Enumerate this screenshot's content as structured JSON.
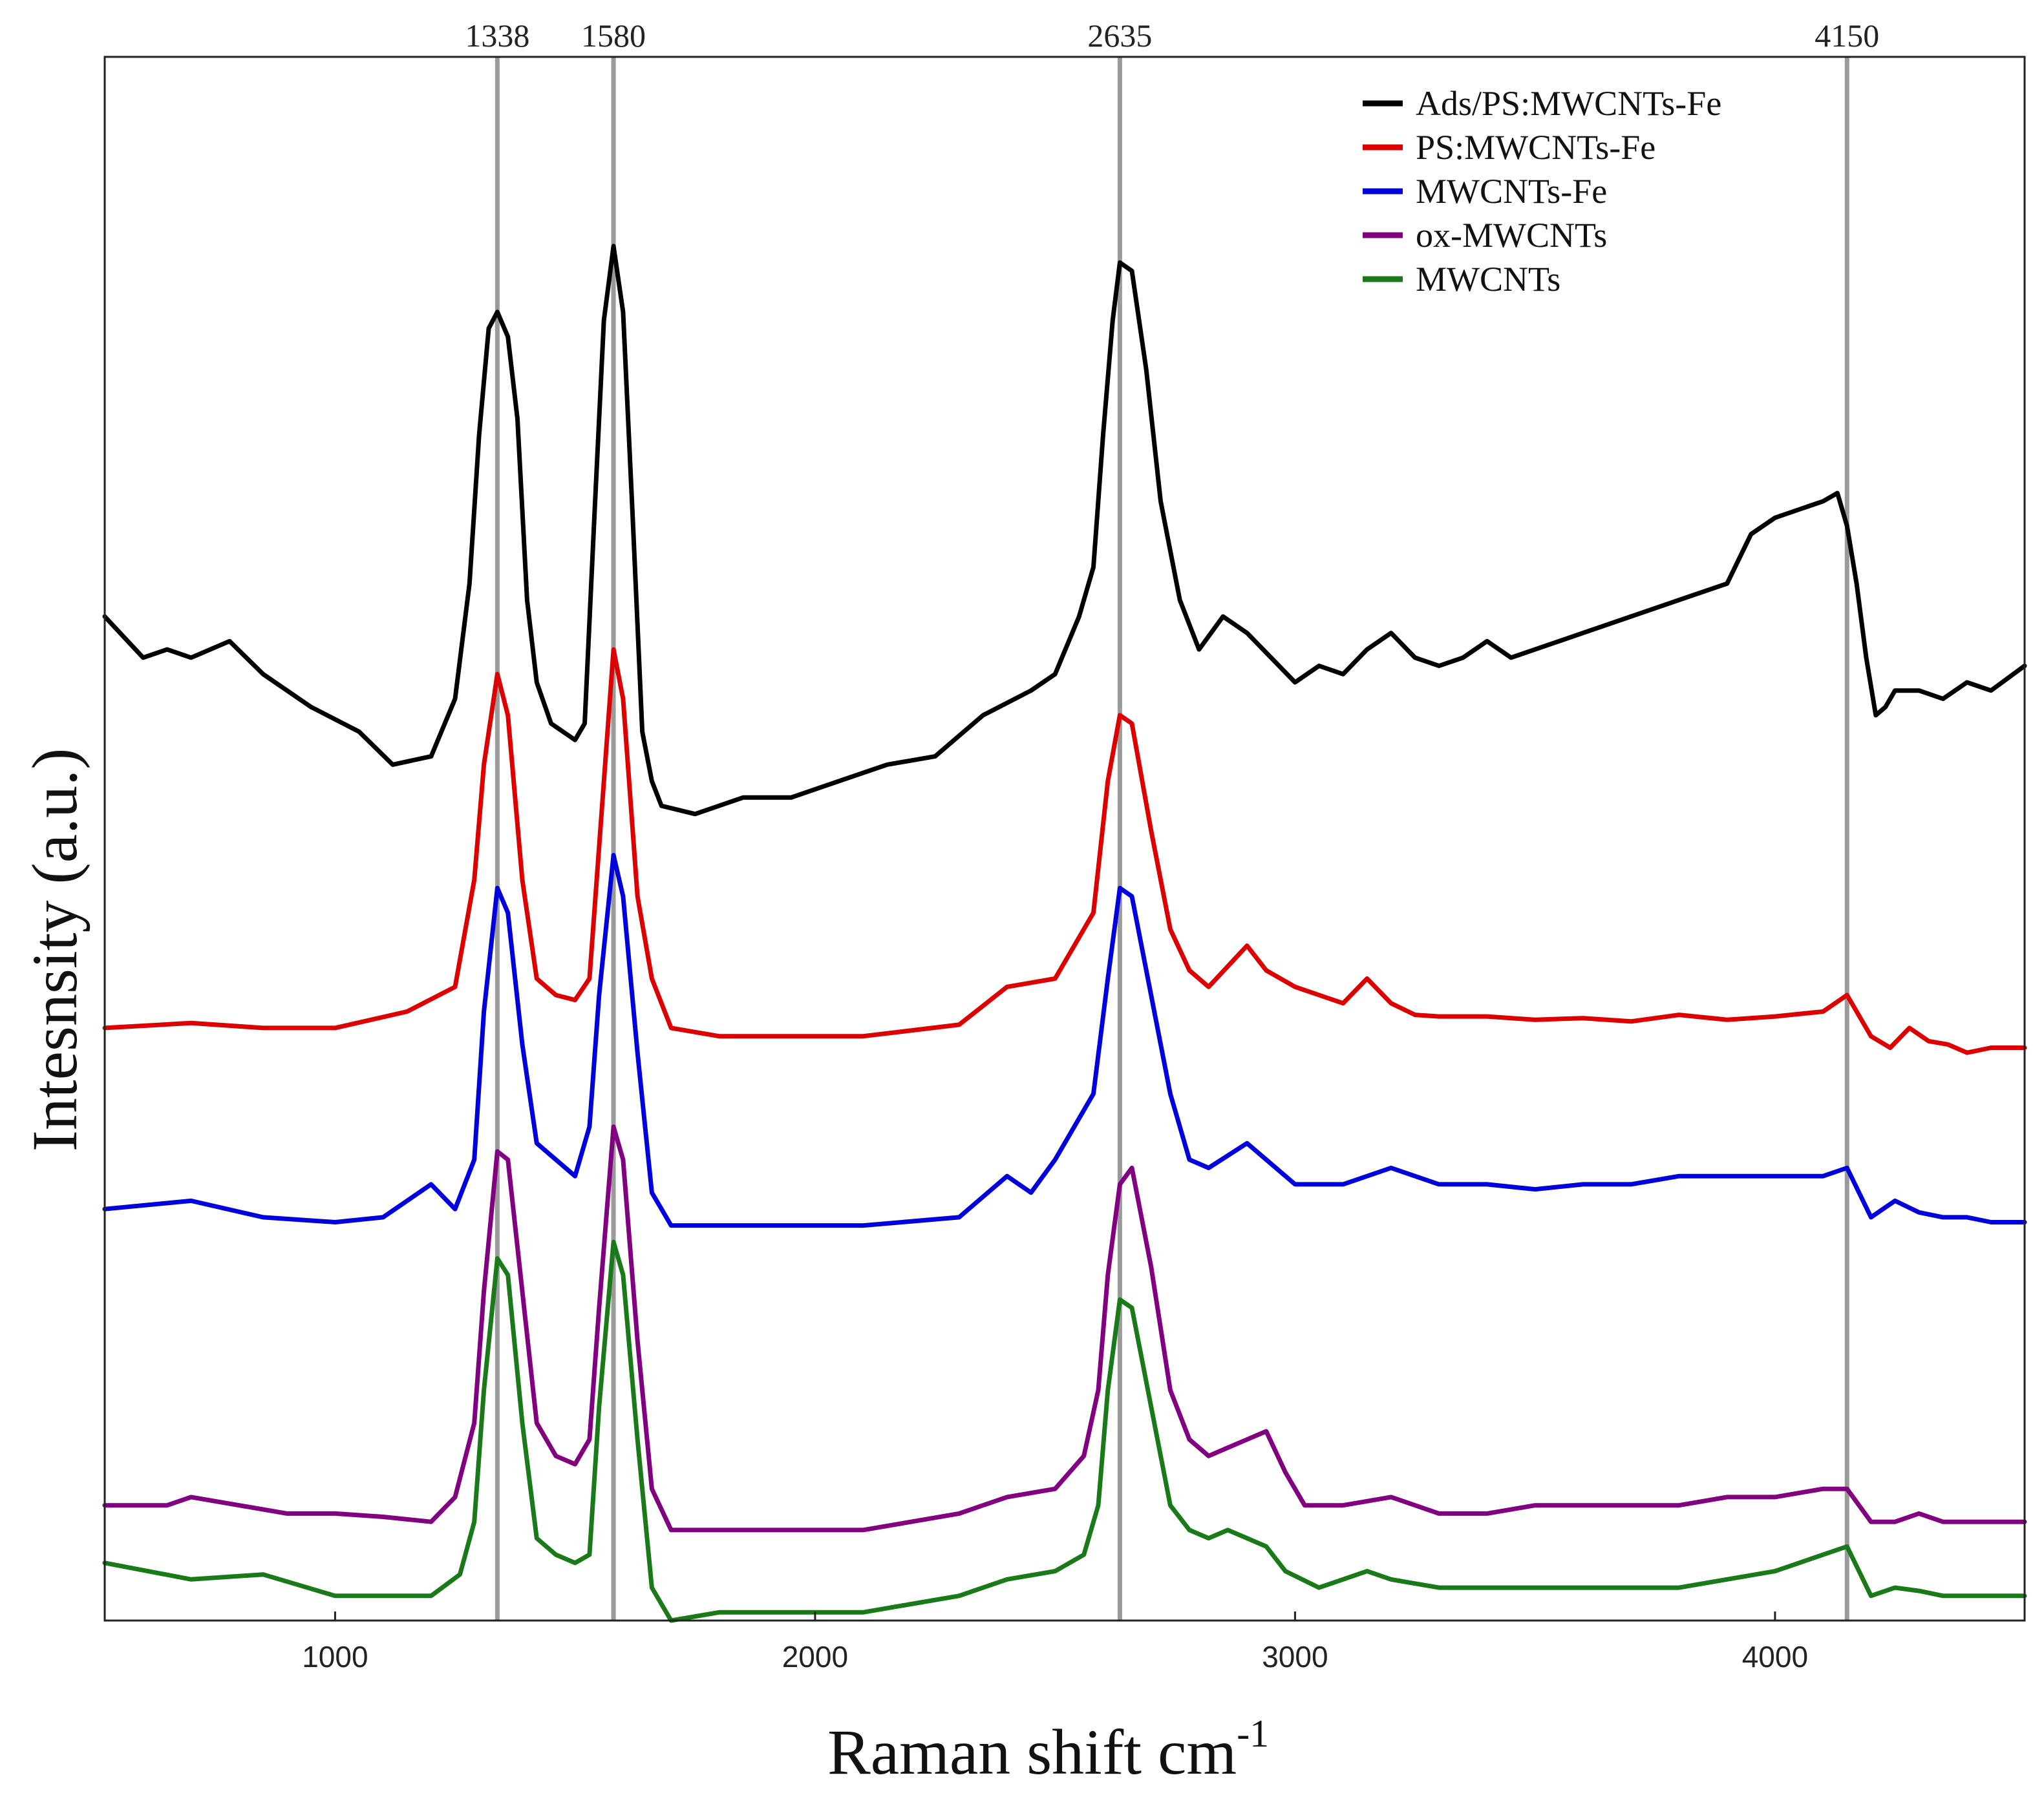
{
  "chart_data": {
    "type": "line",
    "title": "",
    "xlabel": "Raman shift cm",
    "xlabel_superscript": "-1",
    "ylabel": "Intesnsity (a.u.)",
    "xlim": [
      520,
      4520
    ],
    "ylim": [
      -2.9,
      6.6
    ],
    "x_ticks": [
      1000,
      2000,
      3000,
      4000
    ],
    "y_ticks_shown": false,
    "grid": false,
    "legend_position": "top-right",
    "reference_lines": [
      {
        "x": 1338,
        "label": "1338"
      },
      {
        "x": 1580,
        "label": "1580"
      },
      {
        "x": 2635,
        "label": "2635"
      },
      {
        "x": 4150,
        "label": "4150"
      }
    ],
    "series": [
      {
        "name": "Ads/PS:MWCNTs-Fe",
        "color": "#000000",
        "x": [
          520,
          600,
          650,
          700,
          780,
          850,
          950,
          1050,
          1120,
          1200,
          1250,
          1280,
          1300,
          1320,
          1338,
          1360,
          1380,
          1400,
          1420,
          1450,
          1500,
          1520,
          1540,
          1560,
          1580,
          1600,
          1620,
          1640,
          1660,
          1680,
          1750,
          1850,
          1950,
          2050,
          2150,
          2250,
          2350,
          2450,
          2500,
          2550,
          2580,
          2600,
          2620,
          2635,
          2660,
          2690,
          2720,
          2760,
          2800,
          2850,
          2900,
          2950,
          3000,
          3050,
          3100,
          3150,
          3200,
          3250,
          3300,
          3350,
          3400,
          3450,
          3500,
          3600,
          3700,
          3800,
          3900,
          3950,
          4000,
          4050,
          4100,
          4130,
          4150,
          4170,
          4190,
          4210,
          4230,
          4250,
          4300,
          4350,
          4400,
          4450,
          4520
        ],
        "y": [
          3.2,
          2.95,
          3.0,
          2.95,
          3.05,
          2.85,
          2.65,
          2.5,
          2.3,
          2.35,
          2.7,
          3.4,
          4.3,
          4.95,
          5.05,
          4.9,
          4.4,
          3.3,
          2.8,
          2.55,
          2.45,
          2.55,
          3.8,
          5.0,
          5.45,
          5.05,
          3.8,
          2.5,
          2.2,
          2.05,
          2.0,
          2.1,
          2.1,
          2.2,
          2.3,
          2.35,
          2.6,
          2.75,
          2.85,
          3.2,
          3.5,
          4.3,
          5.0,
          5.35,
          5.3,
          4.7,
          3.9,
          3.3,
          3.0,
          3.2,
          3.1,
          2.95,
          2.8,
          2.9,
          2.85,
          3.0,
          3.1,
          2.95,
          2.9,
          2.95,
          3.05,
          2.95,
          3.0,
          3.1,
          3.2,
          3.3,
          3.4,
          3.7,
          3.8,
          3.85,
          3.9,
          3.95,
          3.75,
          3.4,
          2.95,
          2.6,
          2.65,
          2.75,
          2.75,
          2.7,
          2.8,
          2.75,
          2.9
        ]
      },
      {
        "name": "PS:MWCNTs-Fe",
        "color": "#dd0000",
        "x": [
          520,
          700,
          850,
          1000,
          1150,
          1250,
          1290,
          1310,
          1338,
          1360,
          1390,
          1420,
          1460,
          1500,
          1530,
          1550,
          1580,
          1600,
          1630,
          1660,
          1700,
          1800,
          1900,
          2100,
          2300,
          2400,
          2500,
          2580,
          2610,
          2635,
          2660,
          2700,
          2740,
          2780,
          2820,
          2900,
          2940,
          3000,
          3050,
          3100,
          3150,
          3200,
          3250,
          3300,
          3400,
          3500,
          3600,
          3700,
          3800,
          3900,
          4000,
          4100,
          4150,
          4200,
          4240,
          4280,
          4320,
          4360,
          4400,
          4450,
          4520
        ],
        "y": [
          0.7,
          0.73,
          0.7,
          0.7,
          0.8,
          0.95,
          1.6,
          2.3,
          2.85,
          2.6,
          1.6,
          1.0,
          0.9,
          0.87,
          1.0,
          1.8,
          3.0,
          2.7,
          1.5,
          1.0,
          0.7,
          0.65,
          0.65,
          0.65,
          0.72,
          0.95,
          1.0,
          1.4,
          2.2,
          2.6,
          2.55,
          1.9,
          1.3,
          1.05,
          0.95,
          1.2,
          1.05,
          0.95,
          0.9,
          0.85,
          1.0,
          0.85,
          0.78,
          0.77,
          0.77,
          0.75,
          0.76,
          0.74,
          0.78,
          0.75,
          0.77,
          0.8,
          0.9,
          0.65,
          0.58,
          0.7,
          0.62,
          0.6,
          0.55,
          0.58,
          0.58
        ]
      },
      {
        "name": "MWCNTs-Fe",
        "color": "#0000dd",
        "x": [
          520,
          700,
          850,
          1000,
          1100,
          1200,
          1250,
          1290,
          1310,
          1338,
          1360,
          1390,
          1420,
          1460,
          1500,
          1530,
          1550,
          1580,
          1600,
          1630,
          1660,
          1700,
          1800,
          1900,
          2100,
          2300,
          2400,
          2450,
          2500,
          2580,
          2610,
          2635,
          2660,
          2700,
          2740,
          2780,
          2820,
          2900,
          2940,
          3000,
          3100,
          3200,
          3300,
          3400,
          3500,
          3600,
          3700,
          3800,
          3900,
          4000,
          4100,
          4150,
          4200,
          4250,
          4300,
          4350,
          4400,
          4450,
          4520
        ],
        "y": [
          -0.4,
          -0.35,
          -0.45,
          -0.48,
          -0.45,
          -0.25,
          -0.4,
          -0.1,
          0.8,
          1.55,
          1.4,
          0.6,
          0.0,
          -0.1,
          -0.2,
          0.1,
          0.9,
          1.75,
          1.5,
          0.55,
          -0.3,
          -0.5,
          -0.5,
          -0.5,
          -0.5,
          -0.45,
          -0.2,
          -0.3,
          -0.1,
          0.3,
          1.0,
          1.55,
          1.5,
          0.9,
          0.3,
          -0.1,
          -0.15,
          0.0,
          -0.1,
          -0.25,
          -0.25,
          -0.15,
          -0.25,
          -0.25,
          -0.28,
          -0.25,
          -0.25,
          -0.2,
          -0.2,
          -0.2,
          -0.2,
          -0.15,
          -0.45,
          -0.35,
          -0.42,
          -0.45,
          -0.45,
          -0.48,
          -0.48
        ]
      },
      {
        "name": "ox-MWCNTs",
        "color": "#800080",
        "x": [
          520,
          650,
          700,
          800,
          900,
          1000,
          1100,
          1200,
          1250,
          1290,
          1310,
          1338,
          1360,
          1390,
          1420,
          1460,
          1500,
          1530,
          1550,
          1580,
          1600,
          1630,
          1660,
          1700,
          1800,
          1900,
          2000,
          2100,
          2200,
          2300,
          2400,
          2500,
          2560,
          2590,
          2610,
          2635,
          2660,
          2700,
          2740,
          2780,
          2820,
          2860,
          2900,
          2940,
          2980,
          3020,
          3100,
          3200,
          3300,
          3400,
          3500,
          3600,
          3700,
          3800,
          3900,
          4000,
          4100,
          4150,
          4200,
          4250,
          4300,
          4350,
          4400,
          4450,
          4520
        ],
        "y": [
          -2.2,
          -2.2,
          -2.15,
          -2.2,
          -2.25,
          -2.25,
          -2.27,
          -2.3,
          -2.15,
          -1.7,
          -0.9,
          -0.05,
          -0.1,
          -0.9,
          -1.7,
          -1.9,
          -1.95,
          -1.8,
          -1.0,
          0.1,
          -0.1,
          -1.2,
          -2.1,
          -2.35,
          -2.35,
          -2.35,
          -2.35,
          -2.35,
          -2.3,
          -2.25,
          -2.15,
          -2.1,
          -1.9,
          -1.5,
          -0.8,
          -0.25,
          -0.15,
          -0.75,
          -1.5,
          -1.8,
          -1.9,
          -1.85,
          -1.8,
          -1.75,
          -2.0,
          -2.2,
          -2.2,
          -2.15,
          -2.25,
          -2.25,
          -2.2,
          -2.2,
          -2.2,
          -2.2,
          -2.15,
          -2.15,
          -2.1,
          -2.1,
          -2.3,
          -2.3,
          -2.25,
          -2.3,
          -2.3,
          -2.3,
          -2.3
        ]
      },
      {
        "name": "MWCNTs",
        "color": "#1a7a1a",
        "x": [
          520,
          700,
          850,
          1000,
          1100,
          1200,
          1260,
          1290,
          1310,
          1338,
          1360,
          1390,
          1420,
          1460,
          1500,
          1530,
          1550,
          1580,
          1600,
          1630,
          1660,
          1700,
          1800,
          1900,
          2000,
          2100,
          2200,
          2300,
          2400,
          2500,
          2560,
          2590,
          2610,
          2635,
          2660,
          2700,
          2740,
          2780,
          2820,
          2860,
          2900,
          2940,
          2980,
          3050,
          3150,
          3200,
          3300,
          3400,
          3500,
          3600,
          3700,
          3800,
          3900,
          4000,
          4100,
          4150,
          4200,
          4250,
          4300,
          4350,
          4400,
          4450,
          4520
        ],
        "y": [
          -2.55,
          -2.65,
          -2.62,
          -2.75,
          -2.75,
          -2.75,
          -2.62,
          -2.3,
          -1.5,
          -0.7,
          -0.8,
          -1.7,
          -2.4,
          -2.5,
          -2.55,
          -2.5,
          -1.6,
          -0.6,
          -0.8,
          -1.8,
          -2.7,
          -2.9,
          -2.85,
          -2.85,
          -2.85,
          -2.85,
          -2.8,
          -2.75,
          -2.65,
          -2.6,
          -2.5,
          -2.2,
          -1.5,
          -0.95,
          -1.0,
          -1.6,
          -2.2,
          -2.35,
          -2.4,
          -2.35,
          -2.4,
          -2.45,
          -2.6,
          -2.7,
          -2.6,
          -2.65,
          -2.7,
          -2.7,
          -2.7,
          -2.7,
          -2.7,
          -2.7,
          -2.65,
          -2.6,
          -2.5,
          -2.45,
          -2.75,
          -2.7,
          -2.72,
          -2.75,
          -2.75,
          -2.75,
          -2.75
        ]
      }
    ]
  }
}
